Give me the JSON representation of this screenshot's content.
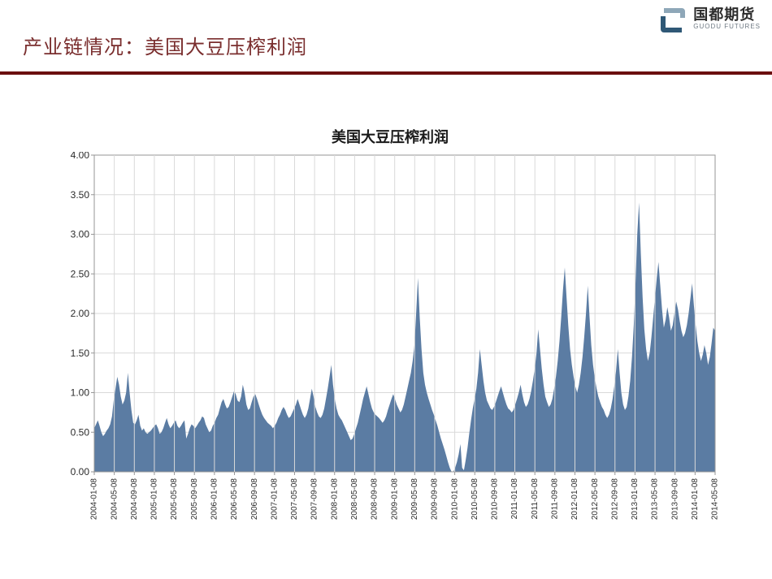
{
  "header": {
    "title": "产业链情况：美国大豆压榨利润",
    "logo": {
      "cn": "国都期货",
      "en": "GUODU FUTURES"
    },
    "divider_color": "#6b0f0f",
    "title_color": "#7a2e2e"
  },
  "chart": {
    "type": "area",
    "title": "美国大豆压榨利润",
    "title_fontsize": 18,
    "background_color": "#ffffff",
    "plot_border_color": "#969696",
    "grid_color": "#d9d9d9",
    "series_color": "#5b7ca3",
    "ylim": [
      0,
      4.0
    ],
    "ytick_step": 0.5,
    "yticks": [
      "0.00",
      "0.50",
      "1.00",
      "1.50",
      "2.00",
      "2.50",
      "3.00",
      "3.50",
      "4.00"
    ],
    "xticks": [
      "2004-01-08",
      "2004-05-08",
      "2004-09-08",
      "2005-01-08",
      "2005-05-08",
      "2005-09-08",
      "2006-01-08",
      "2006-05-08",
      "2006-09-08",
      "2007-01-08",
      "2007-05-08",
      "2007-09-08",
      "2008-01-08",
      "2008-05-08",
      "2008-09-08",
      "2009-01-08",
      "2009-05-08",
      "2009-09-08",
      "2010-01-08",
      "2010-05-08",
      "2010-09-08",
      "2011-01-08",
      "2011-05-08",
      "2011-09-08",
      "2012-01-08",
      "2012-05-08",
      "2012-09-08",
      "2013-01-08",
      "2013-05-08",
      "2013-09-08",
      "2014-01-08",
      "2014-05-08"
    ],
    "label_fontsize": 10,
    "xlabel_rotation": 90,
    "values": [
      0.55,
      0.6,
      0.65,
      0.58,
      0.5,
      0.45,
      0.48,
      0.52,
      0.55,
      0.6,
      0.7,
      0.9,
      1.05,
      1.2,
      1.1,
      0.95,
      0.85,
      0.9,
      1.0,
      1.25,
      1.0,
      0.78,
      0.62,
      0.6,
      0.65,
      0.72,
      0.58,
      0.52,
      0.55,
      0.5,
      0.48,
      0.5,
      0.52,
      0.55,
      0.58,
      0.6,
      0.55,
      0.48,
      0.5,
      0.55,
      0.62,
      0.68,
      0.6,
      0.55,
      0.58,
      0.62,
      0.65,
      0.58,
      0.55,
      0.58,
      0.62,
      0.65,
      0.42,
      0.48,
      0.55,
      0.6,
      0.58,
      0.55,
      0.58,
      0.62,
      0.65,
      0.7,
      0.68,
      0.6,
      0.55,
      0.5,
      0.52,
      0.58,
      0.62,
      0.68,
      0.72,
      0.8,
      0.88,
      0.92,
      0.85,
      0.8,
      0.82,
      0.88,
      0.95,
      1.02,
      0.98,
      0.9,
      0.88,
      0.95,
      1.1,
      1.0,
      0.85,
      0.78,
      0.8,
      0.88,
      0.95,
      0.98,
      0.92,
      0.85,
      0.78,
      0.72,
      0.68,
      0.65,
      0.62,
      0.6,
      0.58,
      0.55,
      0.58,
      0.62,
      0.68,
      0.72,
      0.78,
      0.82,
      0.78,
      0.72,
      0.68,
      0.7,
      0.75,
      0.8,
      0.85,
      0.92,
      0.85,
      0.78,
      0.72,
      0.68,
      0.72,
      0.8,
      0.92,
      1.05,
      0.95,
      0.82,
      0.75,
      0.7,
      0.68,
      0.72,
      0.8,
      0.92,
      1.05,
      1.2,
      1.35,
      1.1,
      0.92,
      0.8,
      0.72,
      0.68,
      0.65,
      0.6,
      0.55,
      0.5,
      0.45,
      0.4,
      0.42,
      0.48,
      0.55,
      0.62,
      0.72,
      0.82,
      0.92,
      1.0,
      1.08,
      0.98,
      0.88,
      0.8,
      0.75,
      0.72,
      0.7,
      0.68,
      0.65,
      0.62,
      0.65,
      0.7,
      0.78,
      0.85,
      0.92,
      0.98,
      0.92,
      0.85,
      0.8,
      0.75,
      0.78,
      0.85,
      0.95,
      1.05,
      1.15,
      1.25,
      1.4,
      1.6,
      2.0,
      2.45,
      1.95,
      1.55,
      1.25,
      1.1,
      1.0,
      0.92,
      0.85,
      0.78,
      0.72,
      0.65,
      0.58,
      0.5,
      0.42,
      0.35,
      0.28,
      0.2,
      0.12,
      0.05,
      0.0,
      0.0,
      0.05,
      0.12,
      0.22,
      0.35,
      0.05,
      0.02,
      0.15,
      0.3,
      0.48,
      0.65,
      0.8,
      0.92,
      1.05,
      1.25,
      1.55,
      1.35,
      1.15,
      1.0,
      0.9,
      0.85,
      0.8,
      0.78,
      0.82,
      0.88,
      0.95,
      1.02,
      1.08,
      1.0,
      0.92,
      0.85,
      0.8,
      0.78,
      0.75,
      0.78,
      0.85,
      0.92,
      1.0,
      1.1,
      0.98,
      0.88,
      0.82,
      0.85,
      0.92,
      1.02,
      1.15,
      1.3,
      1.5,
      1.8,
      1.55,
      1.3,
      1.1,
      0.95,
      0.88,
      0.82,
      0.85,
      0.92,
      1.05,
      1.2,
      1.4,
      1.65,
      1.95,
      2.3,
      2.58,
      2.2,
      1.85,
      1.55,
      1.35,
      1.2,
      1.08,
      1.0,
      1.1,
      1.25,
      1.45,
      1.7,
      2.0,
      2.35,
      1.95,
      1.6,
      1.35,
      1.18,
      1.05,
      0.95,
      0.88,
      0.82,
      0.78,
      0.72,
      0.68,
      0.72,
      0.8,
      0.92,
      1.08,
      1.28,
      1.55,
      1.25,
      1.0,
      0.85,
      0.78,
      0.82,
      0.95,
      1.15,
      1.45,
      1.85,
      2.4,
      3.0,
      3.4,
      2.75,
      2.2,
      1.8,
      1.55,
      1.4,
      1.5,
      1.7,
      1.95,
      2.2,
      2.45,
      2.65,
      2.35,
      2.05,
      1.82,
      1.92,
      2.08,
      1.95,
      1.78,
      1.85,
      2.0,
      2.15,
      2.05,
      1.9,
      1.78,
      1.7,
      1.75,
      1.85,
      2.0,
      2.18,
      2.38,
      2.1,
      1.85,
      1.65,
      1.5,
      1.4,
      1.48,
      1.6,
      1.5,
      1.35,
      1.45,
      1.62,
      1.82,
      1.78
    ]
  }
}
